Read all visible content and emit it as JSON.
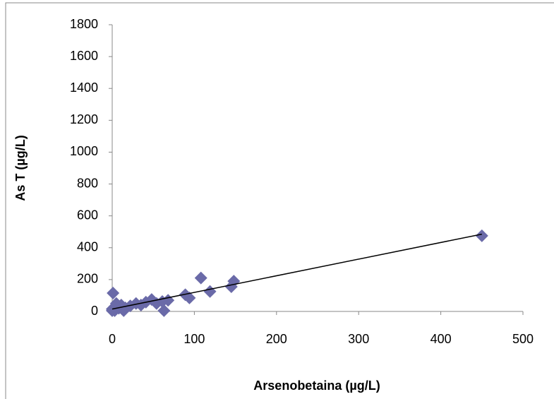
{
  "chart_data": {
    "type": "scatter",
    "x_label": "Arsenobetaina (µg/L)",
    "y_label": "As T (µg/L)",
    "x": [
      1,
      3,
      5,
      8,
      11,
      16,
      22,
      29,
      35,
      41,
      48,
      54,
      61,
      63,
      68,
      89,
      94,
      108,
      119,
      145,
      148,
      450,
      0,
      0,
      14
    ],
    "y": [
      115,
      5,
      50,
      20,
      40,
      22,
      35,
      50,
      40,
      58,
      75,
      50,
      62,
      5,
      70,
      105,
      85,
      210,
      125,
      155,
      190,
      475,
      15,
      5,
      5
    ],
    "color": "#6a6aa8",
    "trendline": {
      "x": [
        0,
        450
      ],
      "y": [
        15,
        485
      ],
      "color": "#000000"
    },
    "xlim": [
      0,
      500
    ],
    "xticks": [
      0,
      100,
      200,
      300,
      400,
      500
    ],
    "ylim": [
      0,
      1800
    ],
    "yticks": [
      0,
      200,
      400,
      600,
      800,
      1000,
      1200,
      1400,
      1600,
      1800
    ]
  }
}
